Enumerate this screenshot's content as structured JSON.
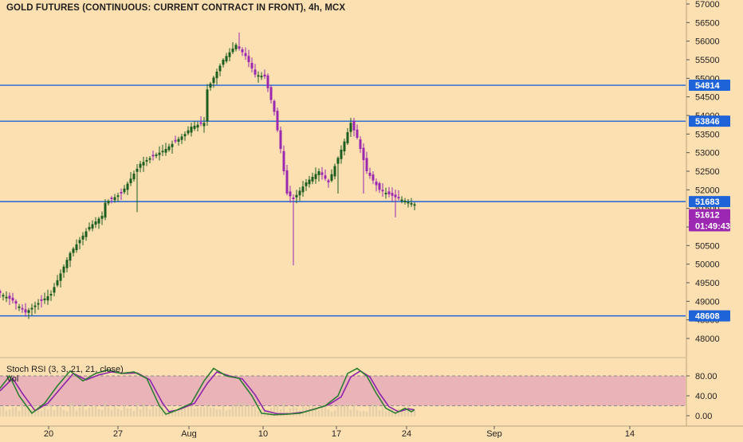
{
  "header": {
    "title": "GOLD FUTURES (CONTINUOUS: CURRENT CONTRACT IN FRONT), 4h, MCX"
  },
  "indicator": {
    "title": "Stoch RSI (3, 3, 21, 21, close)",
    "sub": "Vol"
  },
  "colors": {
    "background": "#fde0b1",
    "up": "#1b5e20",
    "down": "#9c27b0",
    "level_line": "#1e63d8",
    "rsi_band": "#e9b3b8",
    "stoch_k": "#2e7d32",
    "stoch_d": "#8e24aa"
  },
  "chart_data": [
    {
      "type": "candlestick",
      "price_axis": {
        "ylim": [
          47900,
          57100
        ],
        "ticks": [
          48000,
          48500,
          49000,
          49500,
          50000,
          50500,
          51000,
          51500,
          52000,
          52500,
          53000,
          53500,
          54000,
          54500,
          55000,
          55500,
          56000,
          56500,
          57000
        ]
      },
      "time_axis": {
        "labels": [
          "20",
          "27",
          "Aug",
          "10",
          "17",
          "24",
          "Sep",
          "14"
        ]
      },
      "levels": [
        {
          "label": "54814",
          "value": 54814
        },
        {
          "label": "53846",
          "value": 53846
        },
        {
          "label": "51683",
          "value": 51683
        },
        {
          "label": "48608",
          "value": 48608
        }
      ],
      "last_price": {
        "label": "51612",
        "value": 51612
      },
      "countdown": "01:49:43",
      "anchors": [
        {
          "i": 0,
          "v": 49220
        },
        {
          "i": 4,
          "v": 49020
        },
        {
          "i": 8,
          "v": 48700
        },
        {
          "i": 12,
          "v": 48950
        },
        {
          "i": 16,
          "v": 49200
        },
        {
          "i": 22,
          "v": 50300
        },
        {
          "i": 28,
          "v": 51000
        },
        {
          "i": 32,
          "v": 51300
        },
        {
          "i": 33,
          "v": 51650
        },
        {
          "i": 38,
          "v": 51900
        },
        {
          "i": 44,
          "v": 52700
        },
        {
          "i": 52,
          "v": 53100
        },
        {
          "i": 58,
          "v": 53500
        },
        {
          "i": 60,
          "v": 53700
        },
        {
          "i": 64,
          "v": 53800
        },
        {
          "i": 65,
          "v": 54700
        },
        {
          "i": 70,
          "v": 55500
        },
        {
          "i": 74,
          "v": 55900
        },
        {
          "i": 77,
          "v": 55600
        },
        {
          "i": 80,
          "v": 55100
        },
        {
          "i": 83,
          "v": 55050
        },
        {
          "i": 86,
          "v": 54100
        },
        {
          "i": 88,
          "v": 53100
        },
        {
          "i": 90,
          "v": 51900
        },
        {
          "i": 92,
          "v": 51750
        },
        {
          "i": 96,
          "v": 52200
        },
        {
          "i": 100,
          "v": 52500
        },
        {
          "i": 103,
          "v": 52200
        },
        {
          "i": 108,
          "v": 53300
        },
        {
          "i": 110,
          "v": 53800
        },
        {
          "i": 112,
          "v": 53400
        },
        {
          "i": 115,
          "v": 52500
        },
        {
          "i": 119,
          "v": 52000
        },
        {
          "i": 124,
          "v": 51800
        },
        {
          "i": 130,
          "v": 51612
        }
      ]
    },
    {
      "type": "line",
      "title": "Stoch RSI (3, 3, 21, 21, close)",
      "ylim": [
        -8,
        100
      ],
      "ticks": [
        0,
        40,
        80
      ],
      "tick_labels": [
        "0.00",
        "40.00",
        "80.00"
      ],
      "band": [
        20,
        80
      ],
      "k_anchors": [
        {
          "i": 0,
          "v": 55
        },
        {
          "i": 3,
          "v": 80
        },
        {
          "i": 6,
          "v": 40
        },
        {
          "i": 10,
          "v": 5
        },
        {
          "i": 14,
          "v": 25
        },
        {
          "i": 18,
          "v": 60
        },
        {
          "i": 22,
          "v": 90
        },
        {
          "i": 26,
          "v": 70
        },
        {
          "i": 30,
          "v": 85
        },
        {
          "i": 34,
          "v": 92
        },
        {
          "i": 38,
          "v": 85
        },
        {
          "i": 42,
          "v": 88
        },
        {
          "i": 46,
          "v": 75
        },
        {
          "i": 50,
          "v": 20
        },
        {
          "i": 52,
          "v": 3
        },
        {
          "i": 55,
          "v": 10
        },
        {
          "i": 60,
          "v": 25
        },
        {
          "i": 64,
          "v": 70
        },
        {
          "i": 67,
          "v": 95
        },
        {
          "i": 71,
          "v": 80
        },
        {
          "i": 75,
          "v": 75
        },
        {
          "i": 79,
          "v": 40
        },
        {
          "i": 82,
          "v": 5
        },
        {
          "i": 86,
          "v": 2
        },
        {
          "i": 90,
          "v": 3
        },
        {
          "i": 94,
          "v": 5
        },
        {
          "i": 98,
          "v": 12
        },
        {
          "i": 102,
          "v": 20
        },
        {
          "i": 106,
          "v": 40
        },
        {
          "i": 109,
          "v": 85
        },
        {
          "i": 112,
          "v": 95
        },
        {
          "i": 115,
          "v": 80
        },
        {
          "i": 118,
          "v": 45
        },
        {
          "i": 121,
          "v": 15
        },
        {
          "i": 124,
          "v": 5
        },
        {
          "i": 127,
          "v": 15
        },
        {
          "i": 129,
          "v": 8
        },
        {
          "i": 130,
          "v": 12
        }
      ],
      "d_anchors": [
        {
          "i": 0,
          "v": 50
        },
        {
          "i": 4,
          "v": 75
        },
        {
          "i": 7,
          "v": 45
        },
        {
          "i": 11,
          "v": 10
        },
        {
          "i": 15,
          "v": 25
        },
        {
          "i": 19,
          "v": 55
        },
        {
          "i": 23,
          "v": 85
        },
        {
          "i": 27,
          "v": 72
        },
        {
          "i": 31,
          "v": 82
        },
        {
          "i": 35,
          "v": 88
        },
        {
          "i": 39,
          "v": 85
        },
        {
          "i": 43,
          "v": 86
        },
        {
          "i": 47,
          "v": 72
        },
        {
          "i": 51,
          "v": 25
        },
        {
          "i": 53,
          "v": 8
        },
        {
          "i": 56,
          "v": 12
        },
        {
          "i": 61,
          "v": 25
        },
        {
          "i": 65,
          "v": 65
        },
        {
          "i": 68,
          "v": 88
        },
        {
          "i": 72,
          "v": 80
        },
        {
          "i": 76,
          "v": 74
        },
        {
          "i": 80,
          "v": 42
        },
        {
          "i": 83,
          "v": 10
        },
        {
          "i": 87,
          "v": 4
        },
        {
          "i": 91,
          "v": 4
        },
        {
          "i": 95,
          "v": 7
        },
        {
          "i": 99,
          "v": 14
        },
        {
          "i": 103,
          "v": 22
        },
        {
          "i": 107,
          "v": 38
        },
        {
          "i": 110,
          "v": 78
        },
        {
          "i": 113,
          "v": 90
        },
        {
          "i": 116,
          "v": 78
        },
        {
          "i": 119,
          "v": 45
        },
        {
          "i": 122,
          "v": 18
        },
        {
          "i": 125,
          "v": 8
        },
        {
          "i": 128,
          "v": 14
        },
        {
          "i": 130,
          "v": 12
        }
      ]
    }
  ]
}
